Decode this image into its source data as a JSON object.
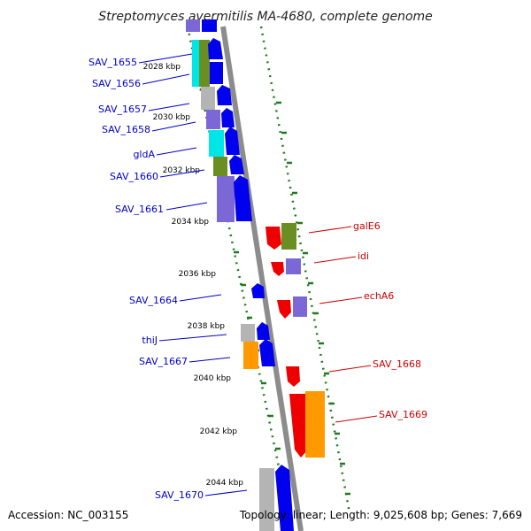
{
  "title": "Streptomyces avermitilis MA-4680, complete genome",
  "footer": {
    "accession": "Accession: NC_003155",
    "topology": "Topology: linear; Length: 9,025,608 bp; Genes: 7,669"
  },
  "colors": {
    "backbone": "#8c8c8c",
    "ticks": "#1f7a1f",
    "left_label": "#0000cc",
    "right_label": "#cc0000",
    "blue": "#0000ee",
    "lavender": "#7b68d6",
    "cyan": "#00e5e5",
    "olive": "#6b8e23",
    "gray": "#b4b4b4",
    "orange": "#ff9900",
    "red": "#ee0000"
  },
  "kbp_ticks": [
    "2028 kbp",
    "2030 kbp",
    "2032 kbp",
    "2034 kbp",
    "2036 kbp",
    "2038 kbp",
    "2040 kbp",
    "2042 kbp",
    "2044 kbp"
  ],
  "left_labels": [
    "SAV_1655",
    "SAV_1656",
    "SAV_1657",
    "SAV_1658",
    "gldA",
    "SAV_1660",
    "SAV_1661",
    "SAV_1664",
    "thiJ",
    "SAV_1667",
    "SAV_1670"
  ],
  "right_labels": [
    "galE6",
    "idi",
    "echA6",
    "SAV_1668",
    "SAV_1669"
  ]
}
